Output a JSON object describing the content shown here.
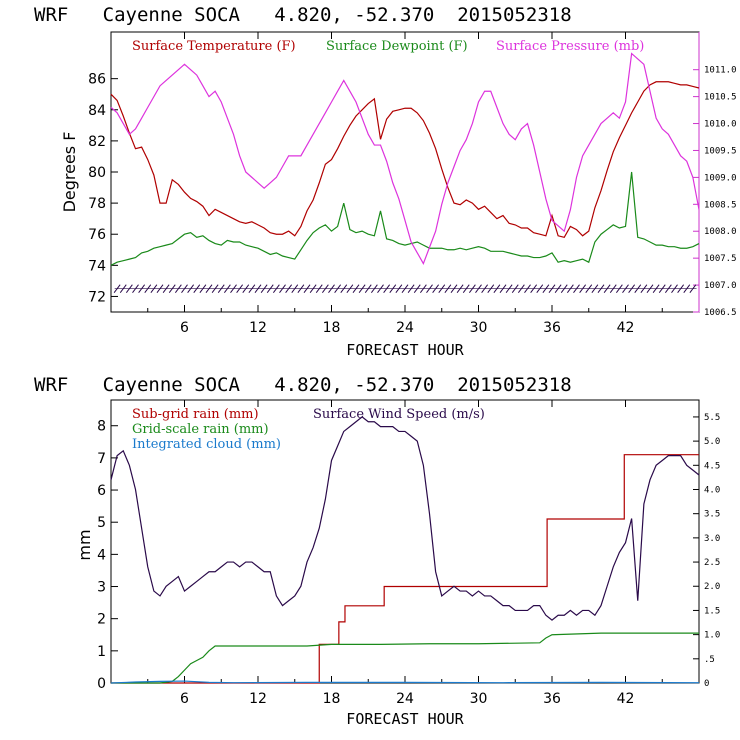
{
  "chart_data": [
    {
      "type": "line",
      "title": "WRF   Cayenne SOCA   4.820, -52.370  2015052318",
      "xlabel": "FORECAST HOUR",
      "ylabel": "Degrees F",
      "xlim": [
        0,
        48
      ],
      "ylim": [
        71,
        89
      ],
      "xticks": [
        "6",
        "12",
        "18",
        "24",
        "30",
        "36",
        "42"
      ],
      "yticks": [
        "72",
        "74",
        "76",
        "78",
        "80",
        "82",
        "84",
        "86"
      ],
      "y2lim": [
        1006.5,
        1011.7
      ],
      "y2ticks": [
        "1006.5",
        "1007.0",
        "1007.5",
        "1008.0",
        "1008.5",
        "1009.0",
        "1009.5",
        "1010.0",
        "1010.5",
        "1011.0"
      ],
      "legend": [
        "Surface Temperature (F)",
        "Surface Dewpoint (F)",
        "Surface Pressure (mb)"
      ],
      "colors": {
        "temp": "#b00000",
        "dew": "#1a8a1a",
        "pres": "#dd33dd",
        "wind": "#2a0a4a",
        "axis_right": "#cc33cc"
      },
      "series": [
        {
          "name": "Surface Temperature (F)",
          "axis": "left",
          "x": [
            0,
            0.5,
            1,
            1.5,
            2,
            2.5,
            3,
            3.5,
            4,
            4.5,
            5,
            5.5,
            6,
            6.5,
            7,
            7.5,
            8,
            8.5,
            9,
            9.5,
            10,
            10.5,
            11,
            11.5,
            12,
            12.5,
            13,
            13.5,
            14,
            14.5,
            15,
            15.5,
            16,
            16.5,
            17,
            17.5,
            18,
            18.5,
            19,
            19.5,
            20,
            20.5,
            21,
            21.5,
            22,
            22.5,
            23,
            23.5,
            24,
            24.5,
            25,
            25.5,
            26,
            26.5,
            27,
            27.5,
            28,
            28.5,
            29,
            29.5,
            30,
            30.5,
            31,
            31.5,
            32,
            32.5,
            33,
            33.5,
            34,
            34.5,
            35,
            35.5,
            36,
            36.5,
            37,
            37.5,
            38,
            38.5,
            39,
            39.5,
            40,
            40.5,
            41,
            41.5,
            42,
            42.5,
            43,
            43.5,
            44,
            44.5,
            45,
            45.5,
            46,
            46.5,
            47,
            47.5,
            48
          ],
          "values": [
            85,
            84.6,
            83.6,
            82.5,
            81.5,
            81.6,
            80.8,
            79.8,
            78,
            78,
            79.5,
            79.2,
            78.7,
            78.3,
            78.1,
            77.8,
            77.2,
            77.6,
            77.4,
            77.2,
            77,
            76.8,
            76.7,
            76.8,
            76.6,
            76.4,
            76.1,
            76.0,
            76.0,
            76.2,
            75.9,
            76.5,
            77.5,
            78.2,
            79.3,
            80.5,
            80.8,
            81.5,
            82.3,
            83,
            83.6,
            84,
            84.4,
            84.7,
            82.1,
            83.4,
            83.9,
            84,
            84.1,
            84.1,
            83.8,
            83.3,
            82.5,
            81.5,
            80.2,
            79,
            78,
            77.9,
            78.2,
            78,
            77.6,
            77.8,
            77.4,
            77.0,
            77.2,
            76.7,
            76.6,
            76.4,
            76.4,
            76.1,
            76.0,
            75.9,
            77.2,
            75.9,
            75.8,
            76.5,
            76.3,
            75.9,
            76.2,
            77.7,
            78.8,
            80.1,
            81.3,
            82.2,
            83,
            83.8,
            84.5,
            85.2,
            85.6,
            85.8,
            85.8,
            85.8,
            85.7,
            85.6,
            85.6,
            85.5,
            85.4
          ]
        },
        {
          "name": "Surface Dewpoint (F)",
          "axis": "left",
          "x": [
            0,
            0.5,
            1,
            1.5,
            2,
            2.5,
            3,
            3.5,
            4,
            4.5,
            5,
            5.5,
            6,
            6.5,
            7,
            7.5,
            8,
            8.5,
            9,
            9.5,
            10,
            10.5,
            11,
            11.5,
            12,
            12.5,
            13,
            13.5,
            14,
            14.5,
            15,
            15.5,
            16,
            16.5,
            17,
            17.5,
            18,
            18.5,
            19,
            19.5,
            20,
            20.5,
            21,
            21.5,
            22,
            22.5,
            23,
            23.5,
            24,
            24.5,
            25,
            25.5,
            26,
            26.5,
            27,
            27.5,
            28,
            28.5,
            29,
            29.5,
            30,
            30.5,
            31,
            31.5,
            32,
            32.5,
            33,
            33.5,
            34,
            34.5,
            35,
            35.5,
            36,
            36.5,
            37,
            37.5,
            38,
            38.5,
            39,
            39.5,
            40,
            40.5,
            41,
            41.5,
            42,
            42.5,
            43,
            43.5,
            44,
            44.5,
            45,
            45.5,
            46,
            46.5,
            47,
            47.5,
            48
          ],
          "values": [
            74,
            74.2,
            74.3,
            74.4,
            74.5,
            74.8,
            74.9,
            75.1,
            75.2,
            75.3,
            75.4,
            75.7,
            76.0,
            76.1,
            75.8,
            75.9,
            75.6,
            75.4,
            75.3,
            75.6,
            75.5,
            75.5,
            75.3,
            75.2,
            75.1,
            74.9,
            74.7,
            74.8,
            74.6,
            74.5,
            74.4,
            75.0,
            75.6,
            76.1,
            76.4,
            76.6,
            76.2,
            76.5,
            78,
            76.3,
            76.1,
            76.2,
            76.0,
            75.9,
            77.5,
            75.7,
            75.6,
            75.4,
            75.3,
            75.4,
            75.5,
            75.3,
            75.1,
            75.1,
            75.1,
            75.0,
            75.0,
            75.1,
            75.0,
            75.1,
            75.2,
            75.1,
            74.9,
            74.9,
            74.9,
            74.8,
            74.7,
            74.6,
            74.6,
            74.5,
            74.5,
            74.6,
            74.8,
            74.2,
            74.3,
            74.2,
            74.3,
            74.4,
            74.2,
            75.5,
            76.0,
            76.3,
            76.6,
            76.4,
            76.5,
            80,
            75.8,
            75.7,
            75.5,
            75.3,
            75.3,
            75.2,
            75.2,
            75.1,
            75.1,
            75.2,
            75.4
          ]
        },
        {
          "name": "Surface Pressure (mb)",
          "axis": "right",
          "x": [
            0,
            0.5,
            1,
            1.5,
            2,
            2.5,
            3,
            3.5,
            4,
            4.5,
            5,
            5.5,
            6,
            6.5,
            7,
            7.5,
            8,
            8.5,
            9,
            9.5,
            10,
            10.5,
            11,
            11.5,
            12,
            12.5,
            13,
            13.5,
            14,
            14.5,
            15,
            15.5,
            16,
            16.5,
            17,
            17.5,
            18,
            18.5,
            19,
            19.5,
            20,
            20.5,
            21,
            21.5,
            22,
            22.5,
            23,
            23.5,
            24,
            24.5,
            25,
            25.5,
            26,
            26.5,
            27,
            27.5,
            28,
            28.5,
            29,
            29.5,
            30,
            30.5,
            31,
            31.5,
            32,
            32.5,
            33,
            33.5,
            34,
            34.5,
            35,
            35.5,
            36,
            36.5,
            37,
            37.5,
            38,
            38.5,
            39,
            39.5,
            40,
            40.5,
            41,
            41.5,
            42,
            42.5,
            43,
            43.5,
            44,
            44.5,
            45,
            45.5,
            46,
            46.5,
            47,
            47.5,
            48
          ],
          "values": [
            1010.3,
            1010.2,
            1010.0,
            1009.8,
            1009.9,
            1010.1,
            1010.3,
            1010.5,
            1010.7,
            1010.8,
            1010.9,
            1011.0,
            1011.1,
            1011.0,
            1010.9,
            1010.7,
            1010.5,
            1010.6,
            1010.4,
            1010.1,
            1009.8,
            1009.4,
            1009.1,
            1009.0,
            1008.9,
            1008.8,
            1008.9,
            1009.0,
            1009.2,
            1009.4,
            1009.4,
            1009.4,
            1009.6,
            1009.8,
            1010.0,
            1010.2,
            1010.4,
            1010.6,
            1010.8,
            1010.6,
            1010.4,
            1010.1,
            1009.8,
            1009.6,
            1009.6,
            1009.3,
            1008.9,
            1008.6,
            1008.2,
            1007.8,
            1007.6,
            1007.4,
            1007.7,
            1008.0,
            1008.5,
            1008.9,
            1009.2,
            1009.5,
            1009.7,
            1010.0,
            1010.4,
            1010.6,
            1010.6,
            1010.3,
            1010.0,
            1009.8,
            1009.7,
            1009.9,
            1010.0,
            1009.6,
            1009.1,
            1008.6,
            1008.2,
            1008.1,
            1008.0,
            1008.4,
            1009.0,
            1009.4,
            1009.6,
            1009.8,
            1010.0,
            1010.1,
            1010.2,
            1010.1,
            1010.4,
            1011.3,
            1011.2,
            1011.1,
            1010.6,
            1010.1,
            1009.9,
            1009.8,
            1009.6,
            1009.4,
            1009.3,
            1009.0,
            1008.4
          ]
        },
        {
          "name": "Wind barbs",
          "axis": "left",
          "type": "barbs",
          "y": 72.5
        }
      ]
    },
    {
      "type": "line",
      "title": "WRF   Cayenne SOCA   4.820, -52.370  2015052318",
      "xlabel": "FORECAST HOUR",
      "ylabel": "mm",
      "xlim": [
        0,
        48
      ],
      "ylim": [
        0,
        8.8
      ],
      "xticks": [
        "6",
        "12",
        "18",
        "24",
        "30",
        "36",
        "42"
      ],
      "yticks": [
        "0",
        "1",
        "2",
        "3",
        "4",
        "5",
        "6",
        "7",
        "8"
      ],
      "y2lim": [
        0,
        5.85
      ],
      "y2ticks": [
        "0",
        ".5",
        "1.0",
        "1.5",
        "2.0",
        "2.5",
        "3.0",
        "3.5",
        "4.0",
        "4.5",
        "5.0",
        "5.5"
      ],
      "legend": [
        "Sub-grid rain (mm)",
        "Surface Wind Speed (m/s)",
        "Grid-scale rain (mm)",
        "Integrated cloud (mm)"
      ],
      "legend_colors": [
        "#b00000",
        "#2a0a4a",
        "#1a8a1a",
        "#1a7acc"
      ],
      "series": [
        {
          "name": "Sub-grid rain (mm)",
          "axis": "left",
          "step": true,
          "x": [
            0,
            16.9,
            17,
            18.5,
            18.6,
            19,
            19.1,
            20.5,
            20.6,
            21,
            21.1,
            22.3,
            22.4,
            35.5,
            35.6,
            41.8,
            41.9,
            48
          ],
          "values": [
            0,
            0,
            1.2,
            1.2,
            1.9,
            1.9,
            2.4,
            2.4,
            2.4,
            2.4,
            2.4,
            3.0,
            3.0,
            3.0,
            5.1,
            5.1,
            7.1,
            7.1
          ]
        },
        {
          "name": "Surface Wind Speed (m/s)",
          "axis": "right",
          "x": [
            0,
            0.5,
            1,
            1.5,
            2,
            2.5,
            3,
            3.5,
            4,
            4.5,
            5,
            5.5,
            6,
            6.5,
            7,
            7.5,
            8,
            8.5,
            9,
            9.5,
            10,
            10.5,
            11,
            11.5,
            12,
            12.5,
            13,
            13.5,
            14,
            14.5,
            15,
            15.5,
            16,
            16.5,
            17,
            17.5,
            18,
            18.5,
            19,
            19.5,
            20,
            20.5,
            21,
            21.5,
            22,
            22.5,
            23,
            23.5,
            24,
            24.5,
            25,
            25.5,
            26,
            26.5,
            27,
            27.5,
            28,
            28.5,
            29,
            29.5,
            30,
            30.5,
            31,
            31.5,
            32,
            32.5,
            33,
            33.5,
            34,
            34.5,
            35,
            35.5,
            36,
            36.5,
            37,
            37.5,
            38,
            38.5,
            39,
            39.5,
            40,
            40.5,
            41,
            41.5,
            42,
            42.5,
            43,
            43.5,
            44,
            44.5,
            45,
            45.5,
            46,
            46.5,
            47,
            47.5,
            48
          ],
          "values": [
            4.2,
            4.7,
            4.8,
            4.5,
            4.0,
            3.2,
            2.4,
            1.9,
            1.8,
            2.0,
            2.1,
            2.2,
            1.9,
            2.0,
            2.1,
            2.2,
            2.3,
            2.3,
            2.4,
            2.5,
            2.5,
            2.4,
            2.5,
            2.5,
            2.4,
            2.3,
            2.3,
            1.8,
            1.6,
            1.7,
            1.8,
            2.0,
            2.5,
            2.8,
            3.2,
            3.8,
            4.6,
            4.9,
            5.2,
            5.3,
            5.4,
            5.5,
            5.4,
            5.4,
            5.3,
            5.3,
            5.3,
            5.2,
            5.2,
            5.1,
            5.0,
            4.5,
            3.5,
            2.3,
            1.8,
            1.9,
            2.0,
            1.9,
            1.9,
            1.8,
            1.9,
            1.8,
            1.8,
            1.7,
            1.6,
            1.6,
            1.5,
            1.5,
            1.5,
            1.6,
            1.6,
            1.4,
            1.3,
            1.4,
            1.4,
            1.5,
            1.4,
            1.5,
            1.5,
            1.4,
            1.6,
            2.0,
            2.4,
            2.7,
            2.9,
            3.4,
            1.7,
            3.7,
            4.2,
            4.5,
            4.6,
            4.7,
            4.7,
            4.7,
            4.5,
            4.4,
            4.3
          ]
        },
        {
          "name": "Grid-scale rain (mm)",
          "axis": "left",
          "x": [
            0,
            4,
            5,
            5.5,
            6,
            6.5,
            7,
            7.5,
            8,
            8.5,
            9,
            12,
            16,
            18,
            22,
            26,
            30,
            35,
            35.5,
            36,
            40,
            44,
            48
          ],
          "values": [
            0,
            0,
            0.05,
            0.2,
            0.4,
            0.6,
            0.7,
            0.8,
            1.0,
            1.15,
            1.15,
            1.15,
            1.15,
            1.2,
            1.2,
            1.22,
            1.22,
            1.25,
            1.4,
            1.5,
            1.55,
            1.55,
            1.55
          ]
        },
        {
          "name": "Integrated cloud (mm)",
          "axis": "left",
          "x": [
            0,
            2,
            4,
            6,
            8,
            10,
            16,
            24,
            32,
            40,
            48
          ],
          "values": [
            0,
            0.03,
            0.05,
            0.06,
            0.02,
            0.01,
            0.02,
            0.02,
            0.01,
            0.02,
            0.01
          ]
        }
      ]
    }
  ]
}
